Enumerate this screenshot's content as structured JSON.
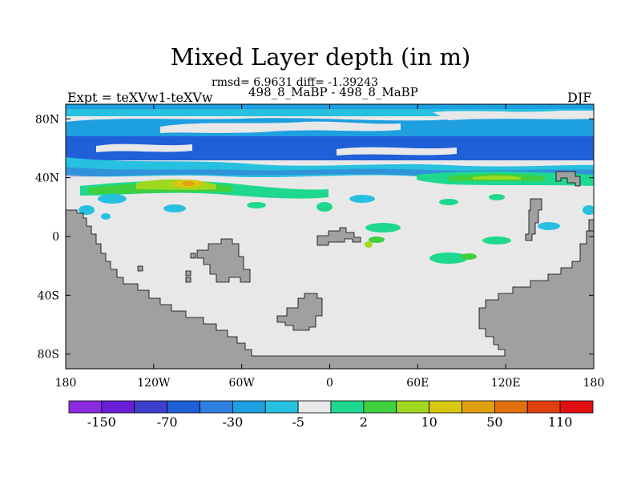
{
  "chart_data": {
    "type": "heatmap",
    "title": "Mixed Layer depth (in m)",
    "rmsd_text": "rmsd= 6.9631 diff= -1.39243",
    "subtitle": "498_8_MaBP - 498_8_MaBP",
    "left_label": "Expt = teXVw1-teXVw",
    "right_label": "DJF",
    "x_ticks": [
      "180",
      "120W",
      "60W",
      "0",
      "60E",
      "120E",
      "180"
    ],
    "x_tick_values": [
      -180,
      -120,
      -60,
      0,
      60,
      120,
      180
    ],
    "y_ticks": [
      "80N",
      "40N",
      "0",
      "40S",
      "80S"
    ],
    "y_tick_values": [
      80,
      40,
      0,
      -40,
      -80
    ],
    "xlim": [
      -180,
      180
    ],
    "ylim": [
      -90,
      90
    ],
    "colorbar": {
      "colors": [
        "#8a2be2",
        "#6a1fd6",
        "#3f3fcf",
        "#1f5fd8",
        "#2f7fe0",
        "#1e9fe0",
        "#28c0e0",
        "#e8e8e8",
        "#1fd88f",
        "#3fcf3f",
        "#9fd81f",
        "#d8c80f",
        "#e0a00f",
        "#e07010",
        "#e03f10",
        "#e01010"
      ],
      "tick_labels": [
        "-150",
        "-70",
        "-30",
        "-5",
        "2",
        "10",
        "50",
        "110"
      ]
    },
    "land_color": "#a0a0a0",
    "neutral_color": "#e8e8e8"
  }
}
